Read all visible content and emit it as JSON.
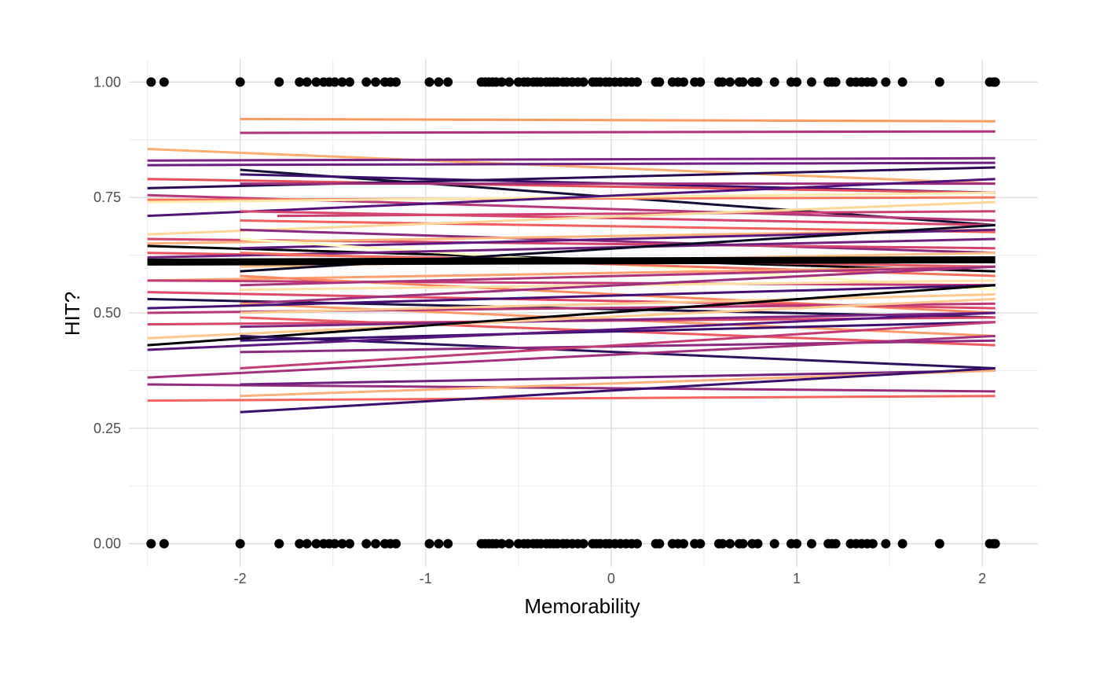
{
  "chart_data": {
    "type": "scatter",
    "title": "",
    "xlabel": "Memorability",
    "ylabel": "HIT?",
    "xlim": [
      -2.6,
      2.3
    ],
    "ylim": [
      -0.05,
      1.05
    ],
    "x_ticks": [
      -2,
      -1,
      0,
      1,
      2
    ],
    "x_tick_labels": [
      "-2",
      "-1",
      "0",
      "1",
      "2"
    ],
    "y_ticks": [
      0,
      0.25,
      0.5,
      0.75,
      1
    ],
    "y_tick_labels": [
      "0.00",
      "0.25",
      "0.50",
      "0.75",
      "1.00"
    ],
    "grid": true,
    "legend": "none",
    "points_x": [
      -2.48,
      -2.41,
      -2.0,
      -1.79,
      -1.68,
      -1.64,
      -1.59,
      -1.55,
      -1.52,
      -1.49,
      -1.45,
      -1.41,
      -1.32,
      -1.27,
      -1.22,
      -1.19,
      -1.16,
      -0.98,
      -0.93,
      -0.88,
      -0.7,
      -0.68,
      -0.66,
      -0.64,
      -0.62,
      -0.59,
      -0.55,
      -0.5,
      -0.47,
      -0.45,
      -0.42,
      -0.4,
      -0.38,
      -0.35,
      -0.33,
      -0.31,
      -0.29,
      -0.26,
      -0.24,
      -0.21,
      -0.18,
      -0.15,
      -0.1,
      -0.08,
      -0.06,
      -0.03,
      -0.01,
      0.02,
      0.05,
      0.08,
      0.11,
      0.14,
      0.24,
      0.26,
      0.33,
      0.36,
      0.39,
      0.45,
      0.48,
      0.58,
      0.6,
      0.64,
      0.69,
      0.71,
      0.76,
      0.79,
      0.88,
      0.97,
      1.0,
      1.08,
      1.17,
      1.19,
      1.21,
      1.29,
      1.32,
      1.35,
      1.38,
      1.41,
      1.48,
      1.57,
      1.77,
      2.04,
      2.06,
      2.07
    ],
    "points_y": [
      0,
      1
    ],
    "line_x_range": [
      -2.5,
      2.07
    ],
    "lines": [
      {
        "x0": -2.0,
        "y0": 0.92,
        "y1": 0.915,
        "color": "#fb9a5e"
      },
      {
        "x0": -2.0,
        "y0": 0.89,
        "y1": 0.893,
        "color": "#b3307c"
      },
      {
        "x0": -2.5,
        "y0": 0.855,
        "y1": 0.78,
        "color": "#fcaf70"
      },
      {
        "x0": -2.5,
        "y0": 0.83,
        "y1": 0.835,
        "color": "#7d2484"
      },
      {
        "x0": -2.5,
        "y0": 0.82,
        "y1": 0.825,
        "color": "#6b1d81"
      },
      {
        "x0": -2.0,
        "y0": 0.81,
        "y1": 0.69,
        "color": "#150e37"
      },
      {
        "x0": -2.0,
        "y0": 0.8,
        "y1": 0.76,
        "color": "#3b0f70"
      },
      {
        "x0": -2.5,
        "y0": 0.79,
        "y1": 0.76,
        "color": "#e34f5a"
      },
      {
        "x0": -2.5,
        "y0": 0.77,
        "y1": 0.815,
        "color": "#2a0a52"
      },
      {
        "x0": -2.5,
        "y0": 0.755,
        "y1": 0.7,
        "color": "#b6377a"
      },
      {
        "x0": -2.0,
        "y0": 0.78,
        "y1": 0.78,
        "color": "#9b2d7a"
      },
      {
        "x0": -2.5,
        "y0": 0.745,
        "y1": 0.75,
        "color": "#f8765c"
      },
      {
        "x0": -2.5,
        "y0": 0.74,
        "y1": 0.76,
        "color": "#fde9a9"
      },
      {
        "x0": -2.5,
        "y0": 0.71,
        "y1": 0.79,
        "color": "#51127c"
      },
      {
        "x0": -1.8,
        "y0": 0.71,
        "y1": 0.72,
        "color": "#cb3e71"
      },
      {
        "x0": -2.0,
        "y0": 0.72,
        "y1": 0.69,
        "color": "#d8456c"
      },
      {
        "x0": -2.0,
        "y0": 0.7,
        "y1": 0.675,
        "color": "#f1605d"
      },
      {
        "x0": -2.5,
        "y0": 0.67,
        "y1": 0.74,
        "color": "#fdd795"
      },
      {
        "x0": -2.0,
        "y0": 0.68,
        "y1": 0.63,
        "color": "#8c2981"
      },
      {
        "x0": -2.5,
        "y0": 0.66,
        "y1": 0.64,
        "color": "#d3436e"
      },
      {
        "x0": -2.5,
        "y0": 0.65,
        "y1": 0.68,
        "color": "#feb47b"
      },
      {
        "x0": -2.5,
        "y0": 0.645,
        "y1": 0.59,
        "color": "#000004"
      },
      {
        "x0": -2.0,
        "y0": 0.64,
        "y1": 0.68,
        "color": "#5f187f"
      },
      {
        "x0": -2.0,
        "y0": 0.66,
        "y1": 0.55,
        "color": "#fcfdbf"
      },
      {
        "x0": -2.5,
        "y0": 0.63,
        "y1": 0.6,
        "color": "#e95462"
      },
      {
        "x0": -2.5,
        "y0": 0.62,
        "y1": 0.66,
        "color": "#721f81"
      },
      {
        "x0": -2.0,
        "y0": 0.63,
        "y1": 0.58,
        "color": "#f7705c"
      },
      {
        "x0": -2.0,
        "y0": 0.6,
        "y1": 0.63,
        "color": "#fec287"
      },
      {
        "x0": -2.0,
        "y0": 0.59,
        "y1": 0.69,
        "color": "#0b0924"
      },
      {
        "x0": -2.5,
        "y0": 0.57,
        "y1": 0.6,
        "color": "#fea16e"
      },
      {
        "x0": -2.5,
        "y0": 0.57,
        "y1": 0.56,
        "color": "#c03a76"
      },
      {
        "x0": -2.0,
        "y0": 0.58,
        "y1": 0.5,
        "color": "#fc8961"
      },
      {
        "x0": -2.0,
        "y0": 0.56,
        "y1": 0.6,
        "color": "#ad347c"
      },
      {
        "x0": -2.5,
        "y0": 0.545,
        "y1": 0.51,
        "color": "#de4968"
      },
      {
        "x0": -2.0,
        "y0": 0.55,
        "y1": 0.57,
        "color": "#fde2a3"
      },
      {
        "x0": -2.5,
        "y0": 0.53,
        "y1": 0.49,
        "color": "#1d1147"
      },
      {
        "x0": -2.0,
        "y0": 0.52,
        "y1": 0.6,
        "color": "#9f2f7f"
      },
      {
        "x0": -2.0,
        "y0": 0.52,
        "y1": 0.45,
        "color": "#fd9a6a"
      },
      {
        "x0": -2.5,
        "y0": 0.51,
        "y1": 0.56,
        "color": "#440f76"
      },
      {
        "x0": -2.5,
        "y0": 0.5,
        "y1": 0.52,
        "color": "#b73779"
      },
      {
        "x0": -2.0,
        "y0": 0.5,
        "y1": 0.54,
        "color": "#feca8d"
      },
      {
        "x0": -2.0,
        "y0": 0.49,
        "y1": 0.43,
        "color": "#ed5a5f"
      },
      {
        "x0": -2.5,
        "y0": 0.475,
        "y1": 0.49,
        "color": "#d6456c"
      },
      {
        "x0": -2.0,
        "y0": 0.47,
        "y1": 0.5,
        "color": "#7e2482"
      },
      {
        "x0": -2.5,
        "y0": 0.445,
        "y1": 0.53,
        "color": "#fec98d"
      },
      {
        "x0": -2.5,
        "y0": 0.43,
        "y1": 0.56,
        "color": "#000004"
      },
      {
        "x0": -2.0,
        "y0": 0.45,
        "y1": 0.38,
        "color": "#2c115f"
      },
      {
        "x0": -2.0,
        "y0": 0.44,
        "y1": 0.48,
        "color": "#3b0f70"
      },
      {
        "x0": -2.5,
        "y0": 0.42,
        "y1": 0.5,
        "color": "#5a167e"
      },
      {
        "x0": -2.0,
        "y0": 0.415,
        "y1": 0.44,
        "color": "#8c2981"
      },
      {
        "x0": -2.0,
        "y0": 0.38,
        "y1": 0.48,
        "color": "#c43c75"
      },
      {
        "x0": -2.5,
        "y0": 0.36,
        "y1": 0.45,
        "color": "#a3307e"
      },
      {
        "x0": -2.5,
        "y0": 0.345,
        "y1": 0.33,
        "color": "#962c80"
      },
      {
        "x0": -2.0,
        "y0": 0.345,
        "y1": 0.375,
        "color": "#711f81"
      },
      {
        "x0": -2.0,
        "y0": 0.32,
        "y1": 0.375,
        "color": "#fcb17a"
      },
      {
        "x0": -2.5,
        "y0": 0.31,
        "y1": 0.32,
        "color": "#f3655c"
      },
      {
        "x0": -2.0,
        "y0": 0.285,
        "y1": 0.38,
        "color": "#3b0f70"
      }
    ],
    "mean_line": {
      "x0": -2.5,
      "y0": 0.61,
      "y1": 0.615,
      "color": "#000000"
    }
  }
}
